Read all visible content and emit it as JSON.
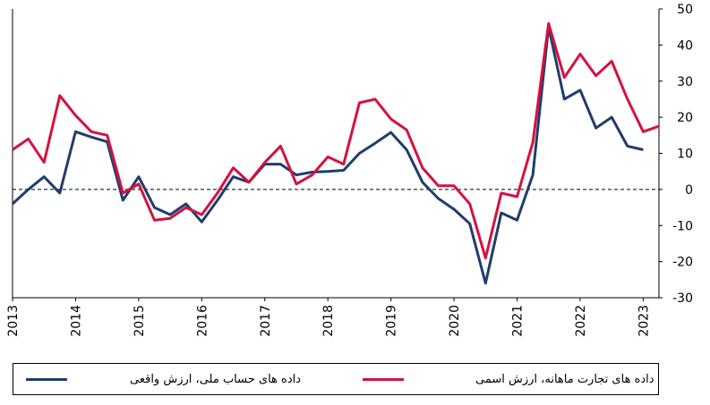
{
  "chart_data": {
    "type": "line",
    "x_labels": [
      "2013",
      "2014",
      "2015",
      "2016",
      "2017",
      "2018",
      "2019",
      "2020",
      "2021",
      "2022",
      "2023"
    ],
    "y_ticks": [
      "50",
      "40",
      "30",
      "20",
      "10",
      "0",
      "-10",
      "-20",
      "-30"
    ],
    "ylim": [
      -30,
      50
    ],
    "reference_line": 0,
    "x_domain": [
      2013,
      2023.25
    ],
    "series": [
      {
        "name": "داده های حساب ملی، ارزش واقعی",
        "color": "#1f3d6e",
        "x": [
          2013,
          2013.25,
          2013.5,
          2013.75,
          2014,
          2014.25,
          2014.5,
          2014.75,
          2015,
          2015.25,
          2015.5,
          2015.75,
          2016,
          2016.25,
          2016.5,
          2016.75,
          2017,
          2017.25,
          2017.5,
          2017.75,
          2018,
          2018.25,
          2018.5,
          2018.75,
          2019,
          2019.25,
          2019.5,
          2019.75,
          2020,
          2020.25,
          2020.5,
          2020.75,
          2021,
          2021.25,
          2021.5,
          2021.75,
          2022,
          2022.25,
          2022.5,
          2022.75,
          2023
        ],
        "values": [
          -4,
          0,
          3.5,
          -1,
          16,
          14.5,
          13.2,
          -3,
          3.5,
          -5,
          -7,
          -4,
          -9,
          -3,
          3.5,
          2,
          7,
          7,
          4,
          4.8,
          5,
          5.3,
          10,
          12.8,
          15.8,
          11,
          2,
          -2.5,
          -5.5,
          -9.5,
          -26,
          -6.5,
          -8.5,
          4,
          45,
          25,
          27.5,
          17,
          20,
          12,
          11
        ]
      },
      {
        "name": "داده های تجارت ماهانه، ارزش اسمی",
        "color": "#d3123f",
        "x": [
          2013,
          2013.25,
          2013.5,
          2013.75,
          2014,
          2014.25,
          2014.5,
          2014.75,
          2015,
          2015.25,
          2015.5,
          2015.75,
          2016,
          2016.25,
          2016.5,
          2016.75,
          2017,
          2017.25,
          2017.5,
          2017.75,
          2018,
          2018.25,
          2018.5,
          2018.75,
          2019,
          2019.25,
          2019.5,
          2019.75,
          2020,
          2020.25,
          2020.5,
          2020.75,
          2021,
          2021.25,
          2021.5,
          2021.75,
          2022,
          2022.25,
          2022.5,
          2022.75,
          2023,
          2023.25
        ],
        "values": [
          11,
          14,
          7.5,
          26,
          20.5,
          16,
          15,
          -1,
          1.5,
          -8.5,
          -8,
          -5,
          -7,
          -1,
          6,
          2,
          7.5,
          12,
          1.5,
          4,
          9,
          7,
          24,
          25,
          19.5,
          16.5,
          6,
          1,
          1,
          -4,
          -19,
          -1,
          -2,
          13,
          46,
          31,
          37.5,
          31.5,
          35.5,
          25,
          16,
          17.5
        ]
      }
    ],
    "legend": [
      {
        "label": "داده های حساب ملی، ارزش واقعی",
        "color": "#1f3d6e"
      },
      {
        "label": "داده های تجارت ماهانه، ارزش اسمی",
        "color": "#d3123f"
      }
    ]
  }
}
